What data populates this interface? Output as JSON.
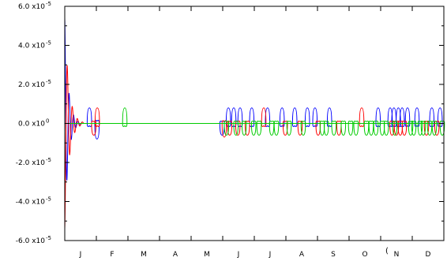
{
  "chart_data": {
    "type": "line",
    "title": "",
    "xlabel": "",
    "ylabel": "",
    "x_domain": [
      0,
      12
    ],
    "x_unit": "month",
    "ylim": [
      -6e-05,
      6e-05
    ],
    "y_major_ticks": [
      -6e-05,
      -4e-05,
      -2e-05,
      0.0,
      2e-05,
      4e-05,
      6e-05
    ],
    "y_minor_step": 1e-05,
    "y_tick_labels": [
      {
        "value": 6e-05,
        "mantissa": "6.0 x10",
        "exponent": "-5"
      },
      {
        "value": 4e-05,
        "mantissa": "4.0 x10",
        "exponent": "-5"
      },
      {
        "value": 2e-05,
        "mantissa": "2.0 x10",
        "exponent": "-5"
      },
      {
        "value": 0.0,
        "mantissa": "0.0 x10",
        "exponent": "0"
      },
      {
        "value": -2e-05,
        "mantissa": "-2.0 x10",
        "exponent": "-5"
      },
      {
        "value": -4e-05,
        "mantissa": "-4.0 x10",
        "exponent": "-5"
      },
      {
        "value": -6e-05,
        "mantissa": "-6.0 x10",
        "exponent": "-5"
      }
    ],
    "x_tick_labels": [
      "J",
      "F",
      "M",
      "A",
      "M",
      "J",
      "J",
      "A",
      "S",
      "O",
      "N",
      "D"
    ],
    "edge_mark": "(",
    "grid": false,
    "legend": "none",
    "series": [
      {
        "color": "#0000ff",
        "baseline": 0.0,
        "damped": {
          "x0": 0.0,
          "amp": 5.4e-05,
          "decay": 0.11,
          "period": 0.14,
          "x1": 0.55
        },
        "events": [
          {
            "x": 0.78,
            "amp": 8e-06
          },
          {
            "x": 1.02,
            "amp": -8e-06
          },
          {
            "x": 4.98,
            "amp": -6e-06
          },
          {
            "x": 5.18,
            "amp": 8e-06
          },
          {
            "x": 5.35,
            "amp": 8e-06
          },
          {
            "x": 5.55,
            "amp": 8e-06
          },
          {
            "x": 5.92,
            "amp": 8e-06
          },
          {
            "x": 6.42,
            "amp": 8e-06
          },
          {
            "x": 6.88,
            "amp": 8e-06
          },
          {
            "x": 7.28,
            "amp": 8e-06
          },
          {
            "x": 7.68,
            "amp": 8e-06
          },
          {
            "x": 7.92,
            "amp": 8e-06
          },
          {
            "x": 8.38,
            "amp": 8e-06
          },
          {
            "x": 9.92,
            "amp": 8e-06
          },
          {
            "x": 10.3,
            "amp": 8e-06
          },
          {
            "x": 10.42,
            "amp": 8e-06
          },
          {
            "x": 10.56,
            "amp": 8e-06
          },
          {
            "x": 10.68,
            "amp": 8e-06
          },
          {
            "x": 10.85,
            "amp": 8e-06
          },
          {
            "x": 11.15,
            "amp": 8e-06
          },
          {
            "x": 11.62,
            "amp": 8e-06
          },
          {
            "x": 11.88,
            "amp": 8e-06
          }
        ]
      },
      {
        "color": "#ff0000",
        "baseline": 0.0,
        "damped": {
          "x0": 0.0,
          "amp": -5.4e-05,
          "decay": 0.13,
          "period": 0.16,
          "x1": 0.6
        },
        "events": [
          {
            "x": 0.92,
            "amp": -6e-06
          },
          {
            "x": 1.03,
            "amp": 8e-06
          },
          {
            "x": 5.05,
            "amp": -7e-06
          },
          {
            "x": 5.22,
            "amp": -6e-06
          },
          {
            "x": 5.48,
            "amp": -6e-06
          },
          {
            "x": 5.78,
            "amp": -6e-06
          },
          {
            "x": 6.3,
            "amp": 8e-06
          },
          {
            "x": 6.98,
            "amp": -6e-06
          },
          {
            "x": 7.45,
            "amp": -6e-06
          },
          {
            "x": 8.02,
            "amp": -6e-06
          },
          {
            "x": 8.68,
            "amp": -6e-06
          },
          {
            "x": 9.4,
            "amp": 8e-06
          },
          {
            "x": 10.36,
            "amp": -6e-06
          },
          {
            "x": 10.5,
            "amp": -6e-06
          },
          {
            "x": 10.62,
            "amp": -6e-06
          },
          {
            "x": 10.75,
            "amp": -6e-06
          },
          {
            "x": 11.45,
            "amp": -6e-06
          },
          {
            "x": 11.78,
            "amp": -6e-06
          }
        ]
      },
      {
        "color": "#00cc00",
        "baseline": 0.0,
        "events": [
          {
            "x": 1.9,
            "amp": 8e-06
          },
          {
            "x": 5.12,
            "amp": -6e-06
          },
          {
            "x": 5.42,
            "amp": -6e-06
          },
          {
            "x": 5.68,
            "amp": -6e-06
          },
          {
            "x": 5.98,
            "amp": -6e-06
          },
          {
            "x": 6.15,
            "amp": -6e-06
          },
          {
            "x": 6.55,
            "amp": -6e-06
          },
          {
            "x": 6.7,
            "amp": -6e-06
          },
          {
            "x": 7.1,
            "amp": -6e-06
          },
          {
            "x": 7.55,
            "amp": -6e-06
          },
          {
            "x": 8.15,
            "amp": -6e-06
          },
          {
            "x": 8.28,
            "amp": -6e-06
          },
          {
            "x": 8.52,
            "amp": -6e-06
          },
          {
            "x": 8.82,
            "amp": -6e-06
          },
          {
            "x": 9.05,
            "amp": -6e-06
          },
          {
            "x": 9.22,
            "amp": -6e-06
          },
          {
            "x": 9.55,
            "amp": -6e-06
          },
          {
            "x": 9.7,
            "amp": -6e-06
          },
          {
            "x": 9.85,
            "amp": -6e-06
          },
          {
            "x": 10.05,
            "amp": -6e-06
          },
          {
            "x": 10.18,
            "amp": -6e-06
          },
          {
            "x": 10.45,
            "amp": -6e-06
          },
          {
            "x": 10.95,
            "amp": -6e-06
          },
          {
            "x": 11.05,
            "amp": -6e-06
          },
          {
            "x": 11.25,
            "amp": -6e-06
          },
          {
            "x": 11.35,
            "amp": -6e-06
          },
          {
            "x": 11.55,
            "amp": -6e-06
          },
          {
            "x": 11.7,
            "amp": -6e-06
          },
          {
            "x": 11.95,
            "amp": -6e-06
          }
        ]
      }
    ]
  }
}
